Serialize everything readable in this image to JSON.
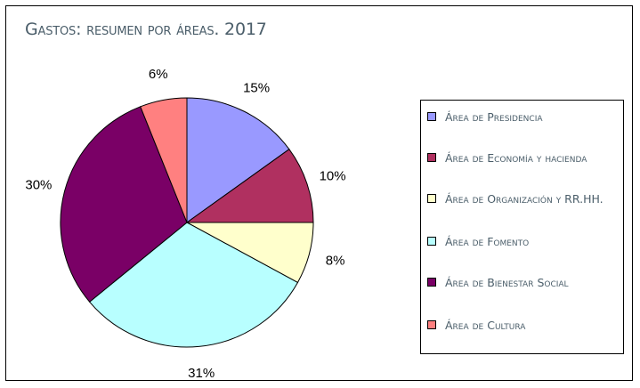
{
  "chart_data": {
    "type": "pie",
    "title": "Gastos: resumen por áreas. 2017",
    "legend_position": "right",
    "slices": [
      {
        "label": "Área de Presidencia",
        "value": 15,
        "display": "15%",
        "color": "#9999ff"
      },
      {
        "label": "Área de Economía y hacienda",
        "value": 10,
        "display": "10%",
        "color": "#b03060"
      },
      {
        "label": "Área de Organización y RR.HH.",
        "value": 8,
        "display": "8%",
        "color": "#ffffcc"
      },
      {
        "label": "Área de Fomento",
        "value": 31,
        "display": "31%",
        "color": "#b8ffff"
      },
      {
        "label": "Área de Bienestar Social",
        "value": 30,
        "display": "30%",
        "color": "#7a0066"
      },
      {
        "label": "Área de Cultura",
        "value": 6,
        "display": "6%",
        "color": "#ff8080"
      }
    ]
  }
}
